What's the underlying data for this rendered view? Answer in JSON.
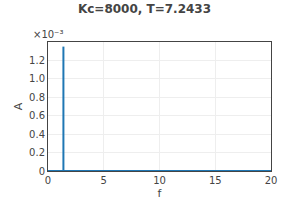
{
  "chart_data": {
    "type": "line",
    "title": "Kc=8000, T=7.2433",
    "x_label": "f",
    "y_label": "A",
    "annotations": [
      "×10⁻³"
    ],
    "series": [
      {
        "x": [
          0,
          20
        ],
        "values": [
          0,
          0
        ],
        "color": "#1f77b4"
      },
      {
        "x": [
          1.382,
          1.382
        ],
        "values": [
          0,
          0.00135
        ],
        "color": "#1f77b4"
      }
    ],
    "xlim": [
      0,
      20
    ],
    "ylim": [
      0,
      0.0014
    ],
    "xticks": [
      0,
      5,
      10,
      15,
      20
    ],
    "yticks": [
      0,
      {
        "value": 0.0002,
        "label": "0.2"
      },
      {
        "value": 0.0004,
        "label": "0.4"
      },
      {
        "value": 0.0006,
        "label": "0.6"
      },
      {
        "value": 0.0008,
        "label": "0.8"
      },
      {
        "value": 0.001,
        "label": "1.0"
      },
      {
        "value": 0.0012,
        "label": "1.2"
      }
    ],
    "grid": true
  }
}
